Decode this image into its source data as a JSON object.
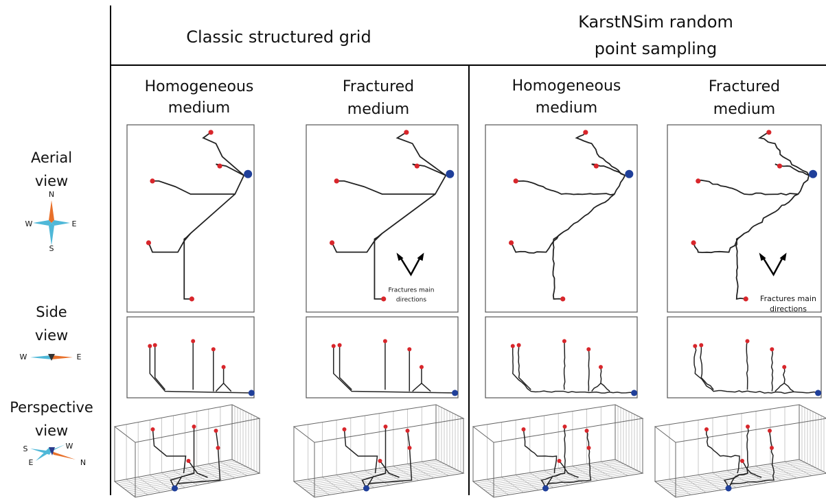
{
  "headers": [
    {
      "lines": [
        "Classic structured grid"
      ]
    },
    {
      "lines": [
        "KarstNSim random",
        "point sampling"
      ]
    }
  ],
  "subheaders": [
    [
      "Homogeneous",
      "medium"
    ],
    [
      "Fractured",
      "medium"
    ],
    [
      "Homogeneous",
      "medium"
    ],
    [
      "Fractured",
      "medium"
    ]
  ],
  "rows": [
    {
      "lines": [
        "Aerial",
        "view"
      ],
      "compass": [
        "N",
        "W",
        "E",
        "S"
      ]
    },
    {
      "lines": [
        "Side",
        "view"
      ],
      "compass": [
        "W",
        "E"
      ]
    },
    {
      "lines": [
        "Perspective",
        "view"
      ],
      "compass": [
        "S",
        "W",
        "E",
        "N"
      ]
    }
  ],
  "annotations": [
    [
      "Fractures main",
      "directions"
    ],
    [
      "Fractures main",
      "directions"
    ]
  ]
}
